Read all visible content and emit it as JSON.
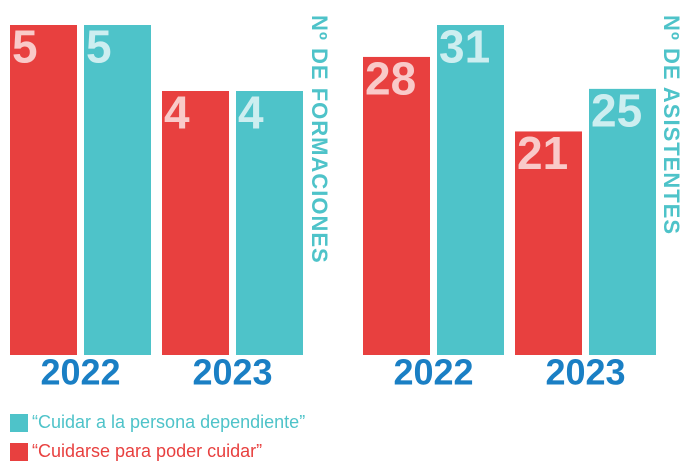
{
  "chart_data": [
    {
      "type": "bar",
      "axis_label": "Nº DE FORMACIONES",
      "categories": [
        "2022",
        "2023"
      ],
      "ylim": [
        0,
        5
      ],
      "series": [
        {
          "color": "#e8403f",
          "values": [
            5,
            4
          ]
        },
        {
          "color": "#4ec3c9",
          "values": [
            5,
            4
          ]
        }
      ]
    },
    {
      "type": "bar",
      "axis_label": "Nº DE ASISTENTES",
      "categories": [
        "2022",
        "2023"
      ],
      "ylim": [
        0,
        31
      ],
      "series": [
        {
          "color": "#e8403f",
          "values": [
            28,
            21
          ]
        },
        {
          "color": "#4ec3c9",
          "values": [
            31,
            25
          ]
        }
      ]
    }
  ],
  "legend": {
    "items": [
      {
        "name": "“Cuidar a la persona dependiente”",
        "color": "#4ec3c9"
      },
      {
        "name": "“Cuidarse para poder cuidar”",
        "color": "#e8403f"
      }
    ]
  }
}
